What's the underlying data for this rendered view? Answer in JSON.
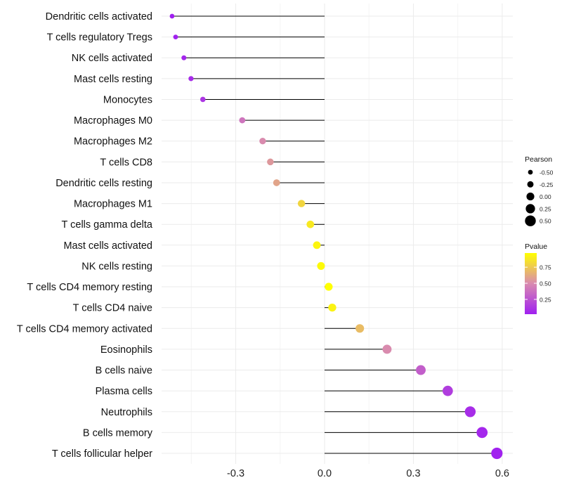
{
  "chart_data": {
    "type": "scatter",
    "subtype": "lollipop",
    "title": "",
    "xlabel": "",
    "ylabel": "",
    "xlim": [
      -0.56,
      0.62
    ],
    "x_ticks": [
      -0.3,
      0.0,
      0.3,
      0.6
    ],
    "x_tick_labels": [
      "-0.3",
      "0.0",
      "0.3",
      "0.6"
    ],
    "grid": true,
    "categories": [
      "Dendritic cells activated",
      "T cells regulatory  Tregs",
      "NK cells activated",
      "Mast cells resting",
      "Monocytes",
      "Macrophages M0",
      "Macrophages M2",
      "T cells CD8",
      "Dendritic cells resting",
      "Macrophages M1",
      "T cells gamma delta",
      "Mast cells activated",
      "NK cells resting",
      "T cells CD4 memory resting",
      "T cells CD4 naive",
      "T cells CD4 memory activated",
      "Eosinophils",
      "B cells naive",
      "Plasma cells",
      "Neutrophils",
      "B cells memory",
      "T cells follicular helper"
    ],
    "pearson": [
      -0.515,
      -0.503,
      -0.475,
      -0.451,
      -0.411,
      -0.278,
      -0.209,
      -0.183,
      -0.162,
      -0.078,
      -0.048,
      -0.026,
      -0.012,
      0.014,
      0.026,
      0.119,
      0.211,
      0.325,
      0.416,
      0.492,
      0.532,
      0.582
    ],
    "pvalue": [
      0.02,
      0.03,
      0.05,
      0.07,
      0.12,
      0.4,
      0.5,
      0.55,
      0.6,
      0.8,
      0.88,
      0.93,
      0.95,
      0.97,
      0.92,
      0.7,
      0.5,
      0.3,
      0.15,
      0.08,
      0.05,
      0.03
    ],
    "legend": {
      "placement": "right",
      "size_title": "Pearson",
      "size_breaks": [
        -0.5,
        -0.25,
        0.0,
        0.25,
        0.5
      ],
      "size_labels": [
        "-0.50",
        "-0.25",
        "0.00",
        "0.25",
        "0.50"
      ],
      "color_title": "Pvalue",
      "color_breaks": [
        0.75,
        0.5,
        0.25
      ],
      "color_labels": [
        "0.75",
        "0.50",
        "0.25"
      ],
      "color_range": [
        0.02,
        0.97
      ],
      "color_low": "#A020F0",
      "color_mid": "#D98AB0",
      "color_high": "#FFFF00"
    }
  }
}
